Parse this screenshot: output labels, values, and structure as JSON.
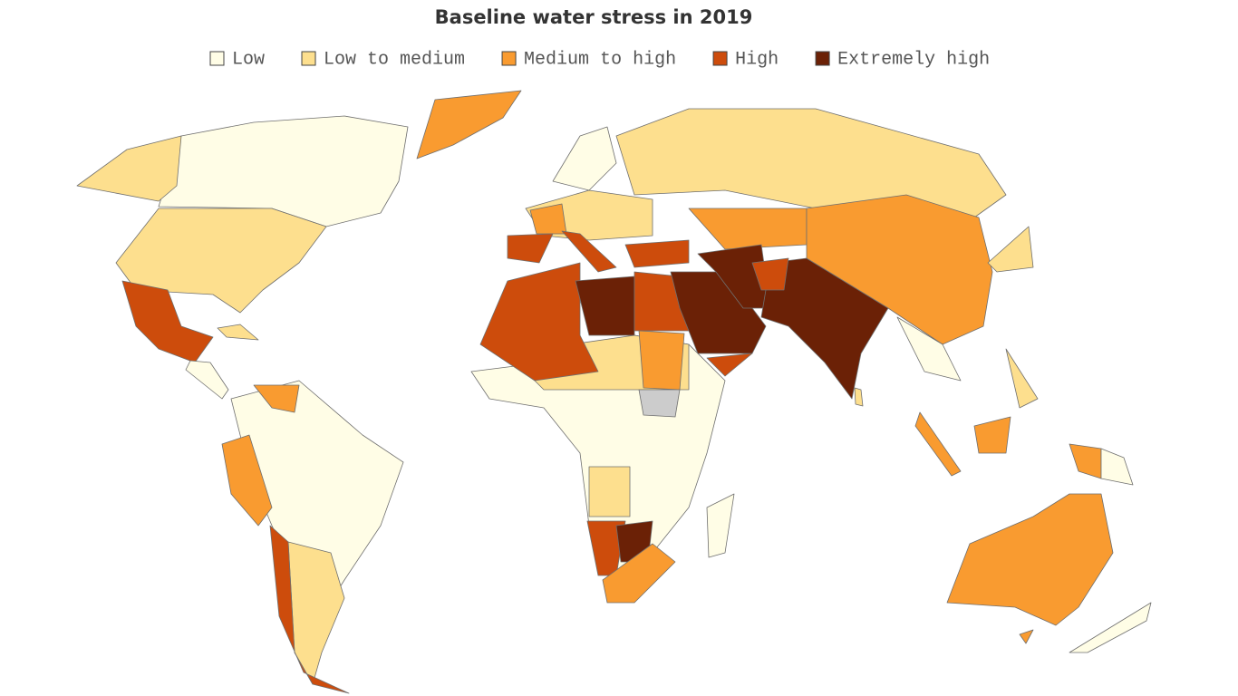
{
  "title": "Baseline water stress in 2019",
  "legend": [
    {
      "label": "Low",
      "color": "#fffde6"
    },
    {
      "label": "Low to medium",
      "color": "#fddf8e"
    },
    {
      "label": "Medium to high",
      "color": "#f99b30"
    },
    {
      "label": "High",
      "color": "#cd4c0c"
    },
    {
      "label": "Extremely high",
      "color": "#6b2106"
    }
  ],
  "no_data_color": "#cccccc"
}
